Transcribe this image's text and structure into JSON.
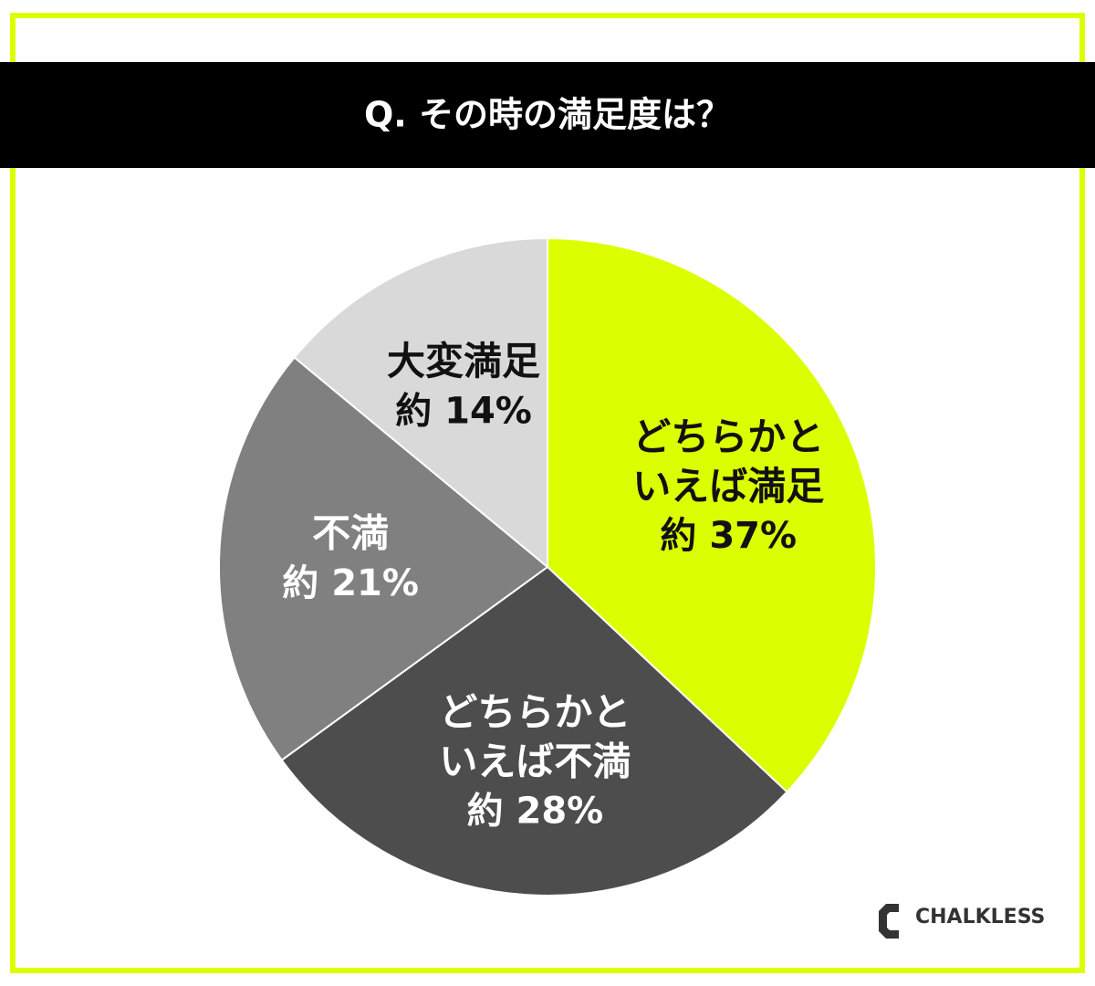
{
  "chart_data": {
    "type": "pie",
    "title": "Q. その時の満足度は？",
    "categories": [
      "どちらかといえば満足",
      "どちらかといえば不満",
      "不満",
      "大変満足"
    ],
    "values": [
      37,
      28,
      21,
      14
    ],
    "value_labels": [
      "約 37%",
      "約 28%",
      "約 21%",
      "約 14%"
    ],
    "colors": [
      "#dcff00",
      "#4d4d4d",
      "#808080",
      "#d9d9d9"
    ],
    "logo": "CHALKLESS"
  }
}
